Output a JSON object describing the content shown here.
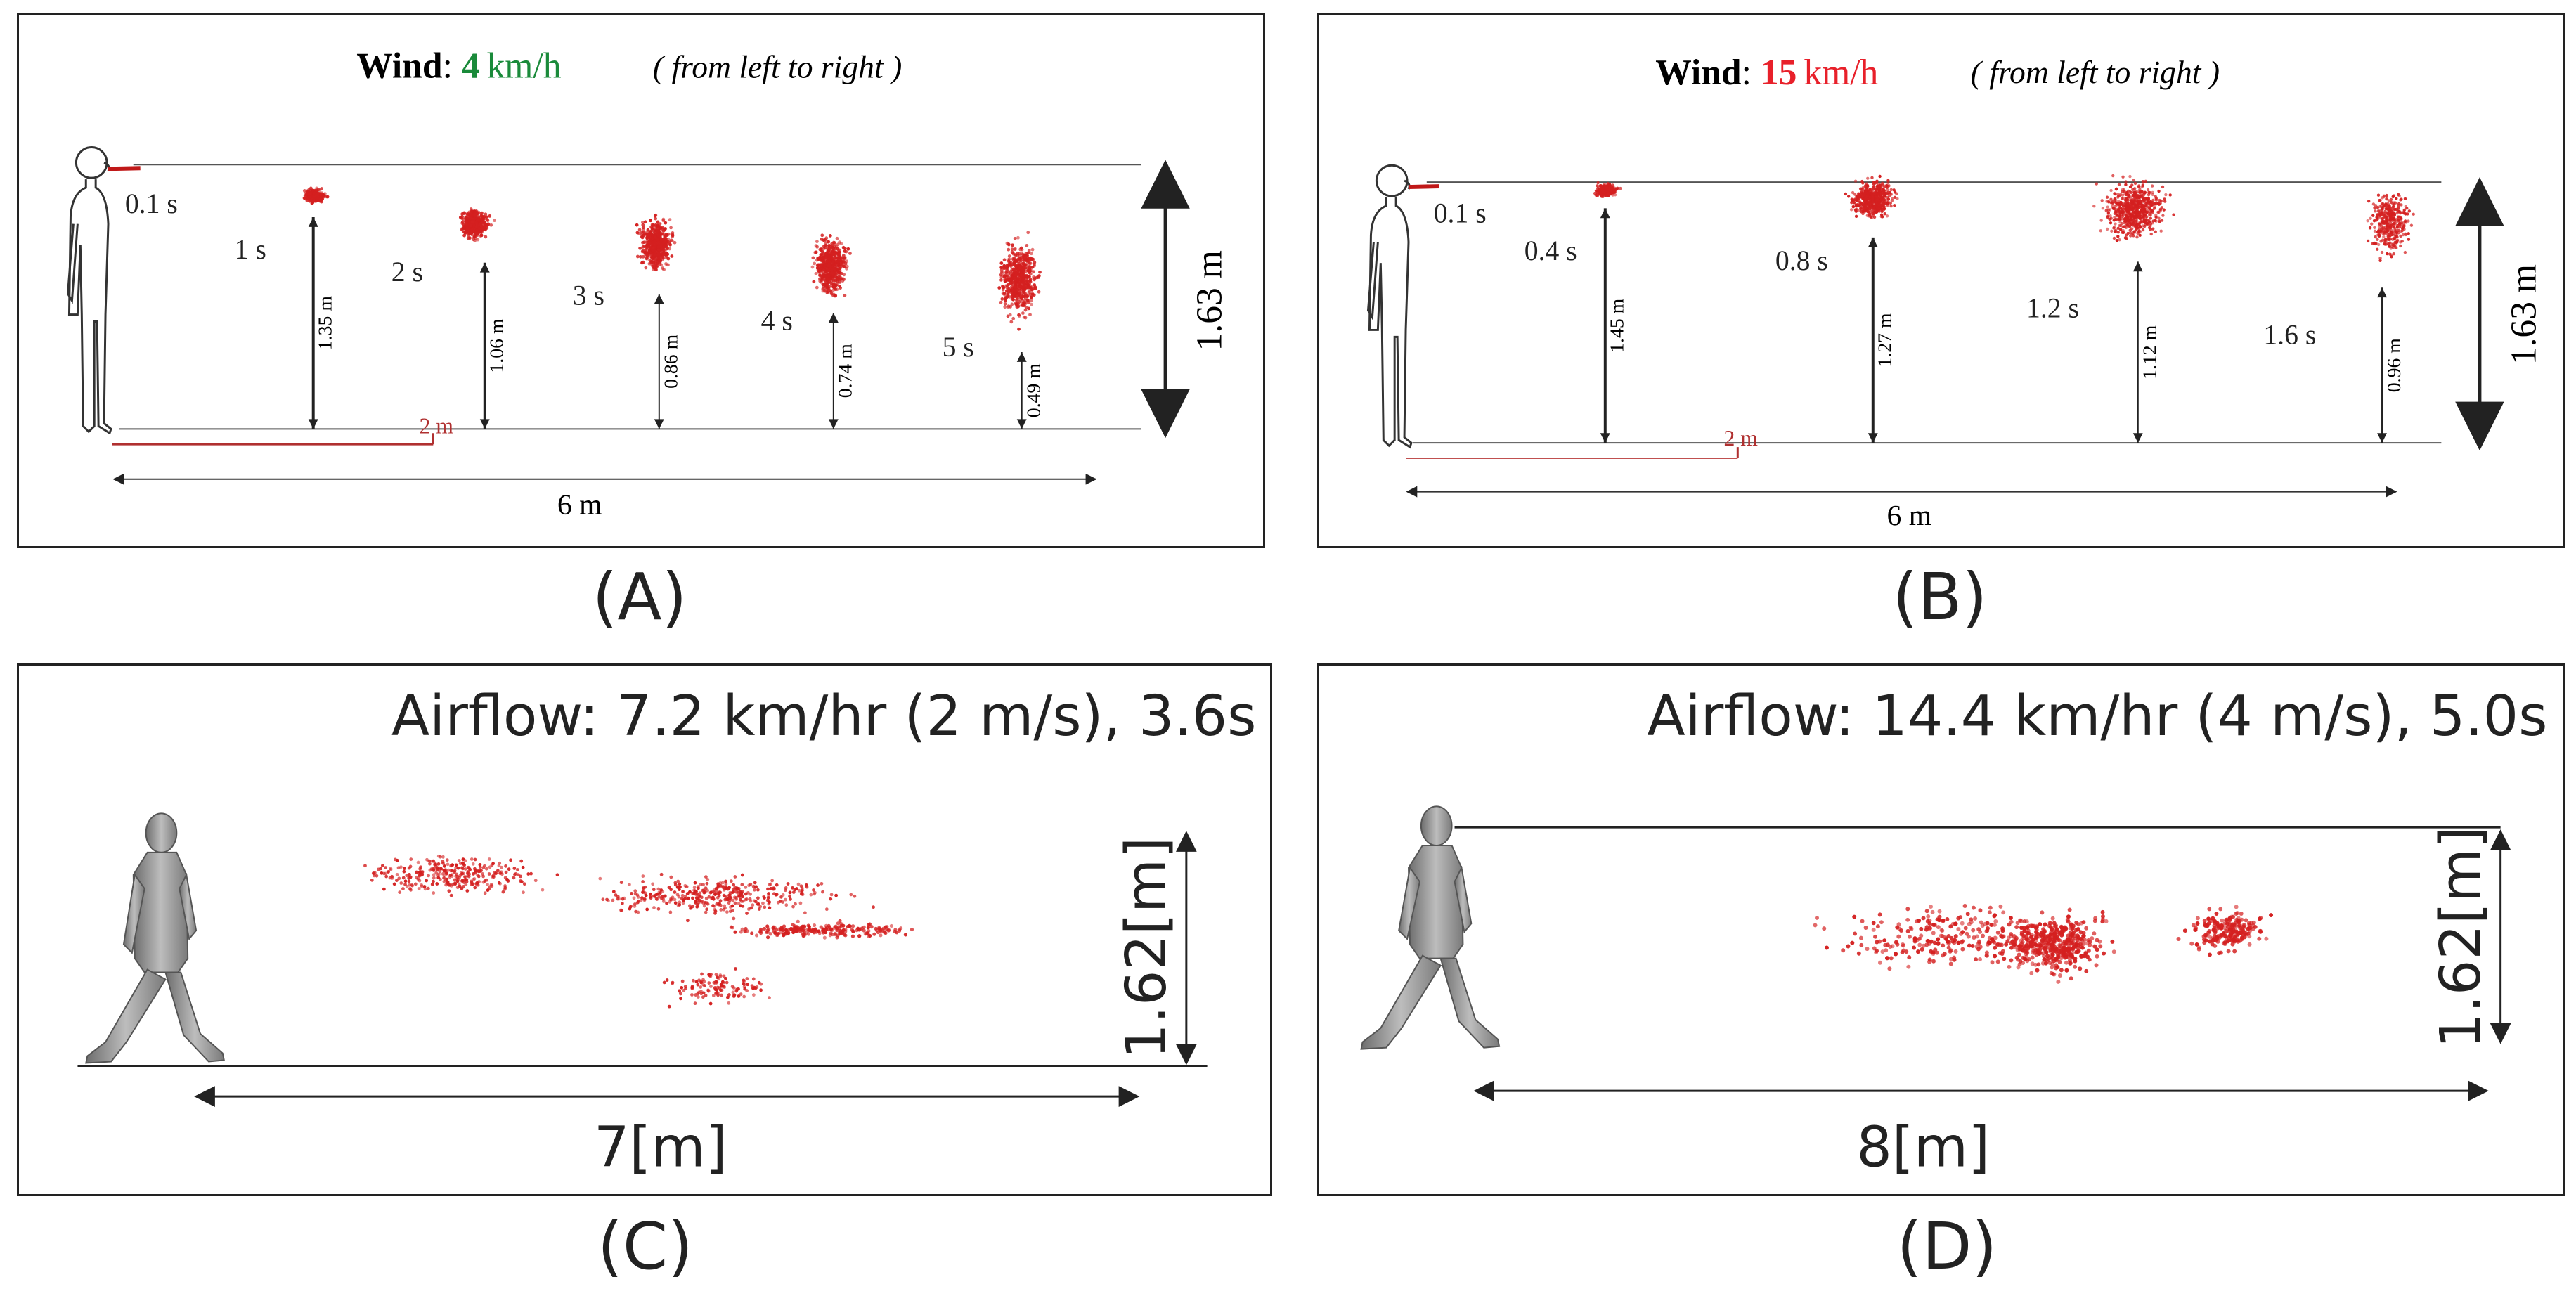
{
  "panel_a": {
    "title_bold": "Wind",
    "title_sep": ": ",
    "speed_value": "4",
    "speed_unit": "km/h",
    "direction": "( from left to right )",
    "speed_color": "#1a8a3a",
    "times": [
      "0.1 s",
      "1 s",
      "2 s",
      "3 s",
      "4 s",
      "5 s"
    ],
    "heights": [
      "1.35 m",
      "1.06 m",
      "0.86 m",
      "0.74 m",
      "0.49 m"
    ],
    "height_values": [
      1.35,
      1.06,
      0.86,
      0.74,
      0.49
    ],
    "scale_label": "2 m",
    "width_label": "6 m",
    "person_height": "1.63 m",
    "caption": "(A)"
  },
  "panel_b": {
    "title_bold": "Wind",
    "title_sep": ": ",
    "speed_value": "15",
    "speed_unit": "km/h",
    "direction": "( from left to right )",
    "speed_color": "#e8202a",
    "times": [
      "0.1 s",
      "0.4 s",
      "0.8 s",
      "1.2 s",
      "1.6 s"
    ],
    "heights": [
      "1.45 m",
      "1.27 m",
      "1.12 m",
      "0.96 m"
    ],
    "height_values": [
      1.45,
      1.27,
      1.12,
      0.96
    ],
    "scale_label": "2 m",
    "width_label": "6 m",
    "person_height": "1.63 m",
    "caption": "(B)"
  },
  "panel_c": {
    "title": "Airflow: 7.2 km/hr (2 m/s), 3.6s",
    "height_label": "1.62[m]",
    "width_label": "7[m]",
    "caption": "(C)"
  },
  "panel_d": {
    "title": "Airflow: 14.4 km/hr (4 m/s), 5.0s",
    "height_label": "1.62[m]",
    "width_label": "8[m]",
    "caption": "(D)"
  },
  "colors": {
    "droplet": "#d42020",
    "scale_red": "#b03030",
    "line": "#222222"
  }
}
